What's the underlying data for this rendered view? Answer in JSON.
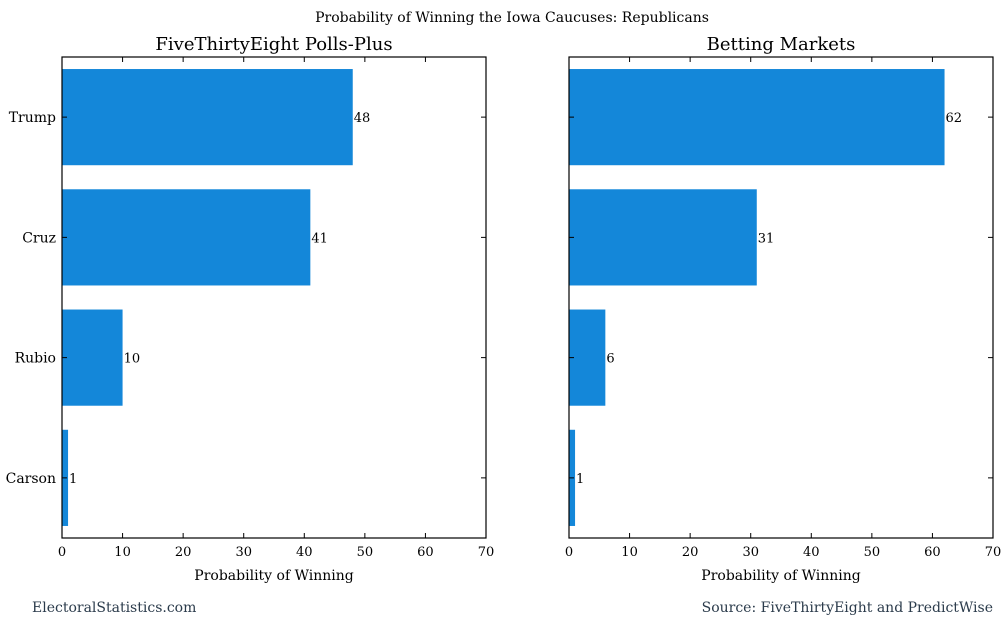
{
  "page": {
    "suptitle": "Probability of Winning the Iowa Caucuses: Republicans",
    "footer_left": "ElectoralStatistics.com",
    "footer_right": "Source: FiveThirtyEight and PredictWise"
  },
  "colors": {
    "bar": "#1487d9",
    "axis": "#000000"
  },
  "chart_data": [
    {
      "type": "bar",
      "orientation": "horizontal",
      "title": "FiveThirtyEight Polls-Plus",
      "xlabel": "Probability of Winning",
      "ylabel": "",
      "categories": [
        "Trump",
        "Cruz",
        "Rubio",
        "Carson"
      ],
      "values": [
        48,
        41,
        10,
        1
      ],
      "value_labels": [
        "48",
        "41",
        "10",
        "1"
      ],
      "xlim": [
        0,
        70
      ],
      "xticks": [
        0,
        10,
        20,
        30,
        40,
        50,
        60,
        70
      ],
      "show_category_labels": true,
      "grid": false
    },
    {
      "type": "bar",
      "orientation": "horizontal",
      "title": "Betting Markets",
      "xlabel": "Probability of Winning",
      "ylabel": "",
      "categories": [
        "Trump",
        "Cruz",
        "Rubio",
        "Carson"
      ],
      "values": [
        62,
        31,
        6,
        1
      ],
      "value_labels": [
        "62",
        "31",
        "6",
        "1"
      ],
      "xlim": [
        0,
        70
      ],
      "xticks": [
        0,
        10,
        20,
        30,
        40,
        50,
        60,
        70
      ],
      "show_category_labels": false,
      "grid": false
    }
  ]
}
